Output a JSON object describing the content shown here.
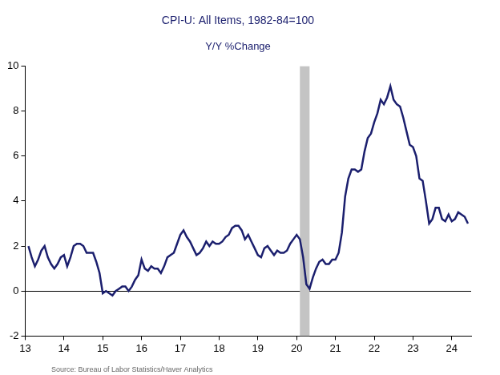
{
  "chart_data": {
    "type": "line",
    "title": "CPI-U: All Items, 1982-84=100",
    "subtitle": "Y/Y %Change",
    "source": "Source: Bureau of Labor Statistics/Haver Analytics",
    "color": "#1b1f6e",
    "grid": false,
    "xlim": [
      2013,
      2024.5
    ],
    "xticks": [
      {
        "value": 2013,
        "label": "13"
      },
      {
        "value": 2014,
        "label": "14"
      },
      {
        "value": 2015,
        "label": "15"
      },
      {
        "value": 2016,
        "label": "16"
      },
      {
        "value": 2017,
        "label": "17"
      },
      {
        "value": 2018,
        "label": "18"
      },
      {
        "value": 2019,
        "label": "19"
      },
      {
        "value": 2020,
        "label": "20"
      },
      {
        "value": 2021,
        "label": "21"
      },
      {
        "value": 2022,
        "label": "22"
      },
      {
        "value": 2023,
        "label": "23"
      },
      {
        "value": 2024,
        "label": "24"
      }
    ],
    "ylim": [
      -2,
      10
    ],
    "yticks": [
      -2,
      0,
      2,
      4,
      6,
      8,
      10
    ],
    "shaded_ranges": [
      {
        "from": 2020.083,
        "to": 2020.333
      }
    ],
    "x": [
      2013.083,
      2013.167,
      2013.25,
      2013.333,
      2013.417,
      2013.5,
      2013.583,
      2013.667,
      2013.75,
      2013.833,
      2013.917,
      2014.0,
      2014.083,
      2014.167,
      2014.25,
      2014.333,
      2014.417,
      2014.5,
      2014.583,
      2014.667,
      2014.75,
      2014.833,
      2014.917,
      2015.0,
      2015.083,
      2015.167,
      2015.25,
      2015.333,
      2015.417,
      2015.5,
      2015.583,
      2015.667,
      2015.75,
      2015.833,
      2015.917,
      2016.0,
      2016.083,
      2016.167,
      2016.25,
      2016.333,
      2016.417,
      2016.5,
      2016.583,
      2016.667,
      2016.75,
      2016.833,
      2016.917,
      2017.0,
      2017.083,
      2017.167,
      2017.25,
      2017.333,
      2017.417,
      2017.5,
      2017.583,
      2017.667,
      2017.75,
      2017.833,
      2017.917,
      2018.0,
      2018.083,
      2018.167,
      2018.25,
      2018.333,
      2018.417,
      2018.5,
      2018.583,
      2018.667,
      2018.75,
      2018.833,
      2018.917,
      2019.0,
      2019.083,
      2019.167,
      2019.25,
      2019.333,
      2019.417,
      2019.5,
      2019.583,
      2019.667,
      2019.75,
      2019.833,
      2019.917,
      2020.0,
      2020.083,
      2020.167,
      2020.25,
      2020.333,
      2020.417,
      2020.5,
      2020.583,
      2020.667,
      2020.75,
      2020.833,
      2020.917,
      2021.0,
      2021.083,
      2021.167,
      2021.25,
      2021.333,
      2021.417,
      2021.5,
      2021.583,
      2021.667,
      2021.75,
      2021.833,
      2021.917,
      2022.0,
      2022.083,
      2022.167,
      2022.25,
      2022.333,
      2022.417,
      2022.5,
      2022.583,
      2022.667,
      2022.75,
      2022.833,
      2022.917,
      2023.0,
      2023.083,
      2023.167,
      2023.25,
      2023.333,
      2023.417,
      2023.5,
      2023.583,
      2023.667,
      2023.75,
      2023.833,
      2023.917,
      2024.0,
      2024.083,
      2024.167,
      2024.25,
      2024.333,
      2024.417
    ],
    "values": [
      2.0,
      1.5,
      1.1,
      1.4,
      1.8,
      2.0,
      1.5,
      1.2,
      1.0,
      1.2,
      1.5,
      1.6,
      1.1,
      1.5,
      2.0,
      2.1,
      2.1,
      2.0,
      1.7,
      1.7,
      1.7,
      1.3,
      0.8,
      -0.1,
      0.0,
      -0.1,
      -0.2,
      0.0,
      0.1,
      0.2,
      0.2,
      0.0,
      0.2,
      0.5,
      0.7,
      1.4,
      1.0,
      0.9,
      1.1,
      1.0,
      1.0,
      0.8,
      1.1,
      1.5,
      1.6,
      1.7,
      2.1,
      2.5,
      2.7,
      2.4,
      2.2,
      1.9,
      1.6,
      1.7,
      1.9,
      2.2,
      2.0,
      2.2,
      2.1,
      2.1,
      2.2,
      2.4,
      2.5,
      2.8,
      2.9,
      2.9,
      2.7,
      2.3,
      2.5,
      2.2,
      1.9,
      1.6,
      1.5,
      1.9,
      2.0,
      1.8,
      1.6,
      1.8,
      1.7,
      1.7,
      1.8,
      2.1,
      2.3,
      2.5,
      2.3,
      1.5,
      0.3,
      0.1,
      0.6,
      1.0,
      1.3,
      1.4,
      1.2,
      1.2,
      1.4,
      1.4,
      1.7,
      2.6,
      4.2,
      5.0,
      5.4,
      5.4,
      5.3,
      5.4,
      6.2,
      6.8,
      7.0,
      7.5,
      7.9,
      8.5,
      8.3,
      8.6,
      9.1,
      8.5,
      8.3,
      8.2,
      7.7,
      7.1,
      6.5,
      6.4,
      6.0,
      5.0,
      4.9,
      4.0,
      3.0,
      3.2,
      3.7,
      3.7,
      3.2,
      3.1,
      3.4,
      3.1,
      3.2,
      3.5,
      3.4,
      3.3,
      3.0
    ]
  }
}
